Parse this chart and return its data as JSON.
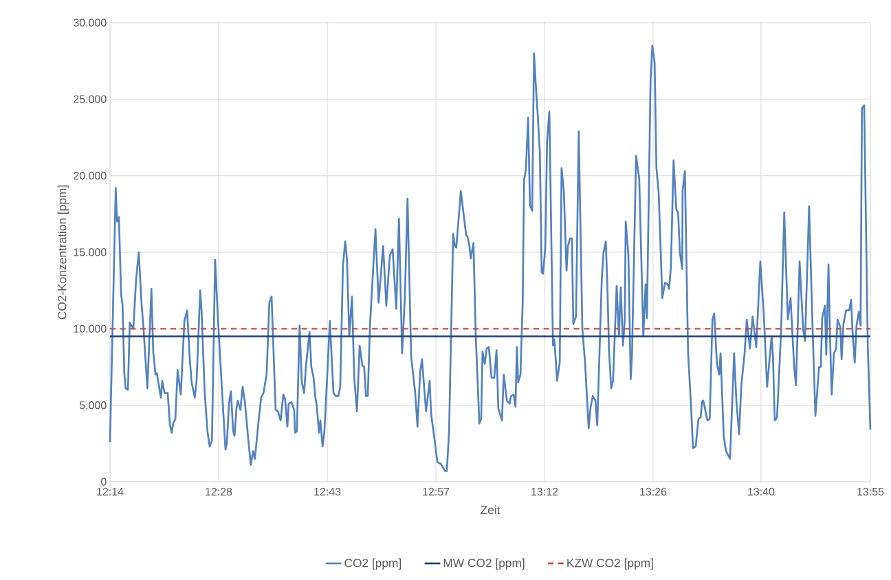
{
  "chart_data": {
    "type": "line",
    "xlabel": "Zeit",
    "ylabel": "CO2-Konzentration [ppm]",
    "xlim": [
      12.2333,
      13.9167
    ],
    "ylim": [
      0,
      30000
    ],
    "xticks": [
      {
        "value": 12.2333,
        "label": "12:14"
      },
      {
        "value": 12.4738,
        "label": "12:28"
      },
      {
        "value": 12.7143,
        "label": "12:43"
      },
      {
        "value": 12.9548,
        "label": "12:57"
      },
      {
        "value": 13.1952,
        "label": "13:12"
      },
      {
        "value": 13.4357,
        "label": "13:26"
      },
      {
        "value": 13.6745,
        "label": "13:40"
      },
      {
        "value": 13.9167,
        "label": "13:55"
      }
    ],
    "yticks": [
      0,
      {
        "value": 5000,
        "label": "5.000"
      },
      {
        "value": 10000,
        "label": "10.000"
      },
      {
        "value": 15000,
        "label": "15.000"
      },
      {
        "value": 20000,
        "label": "20.000"
      },
      {
        "value": 25000,
        "label": "25.000"
      },
      {
        "value": 30000,
        "label": "30.000"
      }
    ],
    "grid": true,
    "legend": "bottom",
    "marker": "none",
    "line_style": "solid",
    "ref_lines": [
      {
        "axis": "y",
        "value": 9500,
        "label": "MW CO2 [ppm]",
        "color": "#203f7a",
        "line_style": "solid"
      },
      {
        "axis": "y",
        "value": 10000,
        "label": "KZW CO2 [ppm]",
        "color": "#d0483c",
        "line_style": "dashed"
      }
    ],
    "series": [
      {
        "name": "CO2 [ppm]",
        "color": "#5282c0",
        "x": [
          12.2333,
          12.246,
          12.249,
          12.253,
          12.258,
          12.261,
          12.265,
          12.268,
          12.273,
          12.277,
          12.285,
          12.291,
          12.297,
          12.303,
          12.308,
          12.316,
          12.325,
          12.329,
          12.334,
          12.337,
          12.346,
          12.349,
          12.354,
          12.361,
          12.366,
          12.37,
          12.373,
          12.378,
          12.383,
          12.39,
          12.398,
          12.404,
          12.41,
          12.414,
          12.421,
          12.425,
          12.433,
          12.436,
          12.443,
          12.449,
          12.454,
          12.459,
          12.466,
          12.472,
          12.481,
          12.489,
          12.492,
          12.497,
          12.501,
          12.506,
          12.509,
          12.513,
          12.516,
          12.522,
          12.527,
          12.532,
          12.539,
          12.545,
          12.55,
          12.554,
          12.562,
          12.568,
          12.573,
          12.58,
          12.586,
          12.591,
          12.6,
          12.605,
          12.611,
          12.617,
          12.621,
          12.626,
          12.629,
          12.635,
          12.641,
          12.643,
          12.647,
          12.653,
          12.658,
          12.663,
          12.667,
          12.675,
          12.679,
          12.684,
          12.688,
          12.691,
          12.696,
          12.699,
          12.704,
          12.708,
          12.714,
          12.72,
          12.728,
          12.733,
          12.739,
          12.743,
          12.749,
          12.754,
          12.758,
          12.763,
          12.769,
          12.774,
          12.78,
          12.786,
          12.792,
          12.796,
          12.8,
          12.804,
          12.809,
          12.813,
          12.818,
          12.821,
          12.828,
          12.838,
          12.845,
          12.853,
          12.859,
          12.867,
          12.873,
          12.88,
          12.886,
          12.892,
          12.9,
          12.909,
          12.914,
          12.92,
          12.924,
          12.933,
          12.941,
          12.944,
          12.952,
          12.958,
          12.962,
          12.965,
          12.975,
          12.979,
          12.984,
          12.993,
          12.997,
          13.0,
          13.01,
          13.016,
          13.022,
          13.025,
          13.029,
          13.032,
          13.038,
          13.043,
          13.051,
          13.055,
          13.058,
          13.063,
          13.067,
          13.072,
          13.078,
          13.084,
          13.089,
          13.093,
          13.101,
          13.105,
          13.112,
          13.118,
          13.121,
          13.127,
          13.131,
          13.134,
          13.137,
          13.142,
          13.147,
          13.15,
          13.154,
          13.159,
          13.163,
          13.168,
          13.172,
          13.177,
          13.18,
          13.185,
          13.189,
          13.192,
          13.197,
          13.201,
          13.206,
          13.214,
          13.217,
          13.218,
          13.223,
          13.229,
          13.233,
          13.238,
          13.244,
          13.247,
          13.252,
          13.256,
          13.259,
          13.265,
          13.271,
          13.279,
          13.285,
          13.293,
          13.297,
          13.302,
          13.308,
          13.312,
          13.322,
          13.326,
          13.331,
          13.335,
          13.338,
          13.343,
          13.347,
          13.355,
          13.36,
          13.364,
          13.369,
          13.373,
          13.375,
          13.381,
          13.386,
          13.389,
          13.398,
          13.405,
          13.414,
          13.419,
          13.422,
          13.43,
          13.434,
          13.439,
          13.443,
          13.448,
          13.456,
          13.462,
          13.468,
          13.471,
          13.475,
          13.481,
          13.487,
          13.491,
          13.495,
          13.5,
          13.501,
          13.506,
          13.513,
          13.519,
          13.524,
          13.53,
          13.536,
          13.541,
          13.544,
          13.547,
          13.551,
          13.556,
          13.561,
          13.567,
          13.571,
          13.577,
          13.582,
          13.585,
          13.592,
          13.597,
          13.606,
          13.615,
          13.62,
          13.626,
          13.631,
          13.638,
          13.643,
          13.65,
          13.656,
          13.664,
          13.673,
          13.681,
          13.688,
          13.698,
          13.701,
          13.705,
          13.71,
          13.719,
          13.726,
          13.734,
          13.74,
          13.748,
          13.752,
          13.76,
          13.768,
          13.772,
          13.781,
          13.789,
          13.795,
          13.803,
          13.807,
          13.81,
          13.816,
          13.819,
          13.824,
          13.827,
          13.831,
          13.836,
          13.841,
          13.844,
          13.85,
          13.853,
          13.857,
          13.863,
          13.87,
          13.874,
          13.877,
          13.882,
          13.886,
          13.891,
          13.895,
          13.898,
          13.903,
          13.911,
          13.9167
        ],
        "values": [
          2600,
          19200,
          17000,
          17300,
          12200,
          11600,
          7100,
          6100,
          6000,
          10400,
          10000,
          13200,
          15000,
          11700,
          9800,
          6100,
          12600,
          8500,
          7000,
          7100,
          5500,
          6600,
          5800,
          5800,
          3700,
          3200,
          3800,
          4100,
          7300,
          5700,
          10500,
          11200,
          8000,
          6500,
          5500,
          6600,
          12500,
          11200,
          5800,
          3300,
          2300,
          2700,
          14500,
          10800,
          6100,
          2100,
          2500,
          5200,
          5900,
          3300,
          3000,
          4700,
          5300,
          4700,
          6200,
          5200,
          2900,
          1100,
          2000,
          1500,
          3900,
          5500,
          5800,
          7000,
          11700,
          12100,
          4700,
          4600,
          4000,
          5700,
          5400,
          3600,
          5100,
          5200,
          4700,
          3200,
          3300,
          10200,
          6500,
          5800,
          7500,
          9800,
          7500,
          6800,
          5500,
          5000,
          3200,
          4000,
          2300,
          3300,
          6800,
          10500,
          5800,
          5600,
          5600,
          6200,
          14100,
          15700,
          14500,
          9500,
          12100,
          6800,
          4600,
          8900,
          7600,
          7500,
          5600,
          5600,
          10300,
          12400,
          15000,
          16500,
          11700,
          15400,
          11500,
          14800,
          15200,
          11300,
          17200,
          8400,
          12000,
          18500,
          8200,
          5800,
          3600,
          7200,
          8000,
          4600,
          6600,
          4500,
          2700,
          1300,
          1200,
          1200,
          700,
          700,
          3300,
          16200,
          15400,
          15300,
          19000,
          17500,
          16100,
          16000,
          15400,
          14600,
          15600,
          9600,
          3800,
          4100,
          8500,
          7700,
          8700,
          8800,
          6800,
          6800,
          8600,
          4800,
          4000,
          7000,
          5300,
          5100,
          5600,
          5700,
          4900,
          8800,
          6500,
          7000,
          11800,
          19700,
          20400,
          23800,
          18100,
          17700,
          28000,
          25400,
          24100,
          21500,
          13700,
          13600,
          15300,
          22300,
          24200,
          8900,
          9300,
          8900,
          6600,
          7800,
          20500,
          19000,
          13800,
          15400,
          15900,
          15900,
          10300,
          10800,
          22900,
          10000,
          7800,
          3500,
          4800,
          5600,
          5300,
          3700,
          13200,
          15000,
          15700,
          12200,
          8600,
          6100,
          6600,
          12800,
          9500,
          12700,
          8900,
          10600,
          17000,
          14800,
          6700,
          8300,
          21300,
          19800,
          9500,
          12900,
          10700,
          26200,
          28500,
          27400,
          20500,
          18900,
          12000,
          13000,
          12900,
          12600,
          14000,
          21000,
          17800,
          17600,
          15000,
          13900,
          19000,
          20300,
          8500,
          5300,
          2200,
          2300,
          4100,
          4200,
          5200,
          5300,
          4700,
          4000,
          4100,
          10600,
          11000,
          7700,
          7000,
          8400,
          3000,
          2000,
          1500,
          8400,
          5300,
          3100,
          6300,
          8300,
          10600,
          8700,
          10800,
          8800,
          14400,
          10800,
          6200,
          9500,
          8200,
          4000,
          4200,
          9800,
          17600,
          10600,
          12000,
          7500,
          6300,
          14400,
          9900,
          9200,
          18000,
          9800,
          4300,
          7500,
          7500,
          10700,
          11500,
          8300,
          14200,
          9800,
          5700,
          8400,
          8700,
          10600,
          10100,
          8000,
          10300,
          11200,
          11200,
          11900,
          9900,
          7800,
          10200,
          11100,
          10200,
          24400,
          24600,
          8800,
          3400
        ]
      }
    ]
  }
}
